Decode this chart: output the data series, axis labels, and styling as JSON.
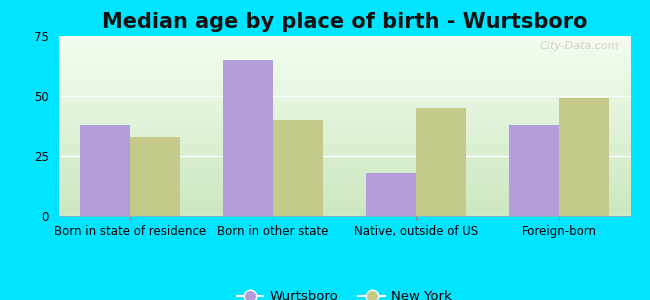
{
  "title": "Median age by place of birth - Wurtsboro",
  "categories": [
    "Born in state of residence",
    "Born in other state",
    "Native, outside of US",
    "Foreign-born"
  ],
  "wurtsboro_values": [
    38,
    65,
    18,
    38
  ],
  "newyork_values": [
    33,
    40,
    45,
    49
  ],
  "wurtsboro_color": "#b39ddb",
  "newyork_color": "#c5c98a",
  "background_outer": "#00e5ff",
  "ylim": [
    0,
    75
  ],
  "yticks": [
    0,
    25,
    50,
    75
  ],
  "bar_width": 0.35,
  "legend_labels": [
    "Wurtsboro",
    "New York"
  ],
  "title_fontsize": 15,
  "tick_fontsize": 8.5,
  "legend_fontsize": 9.5
}
